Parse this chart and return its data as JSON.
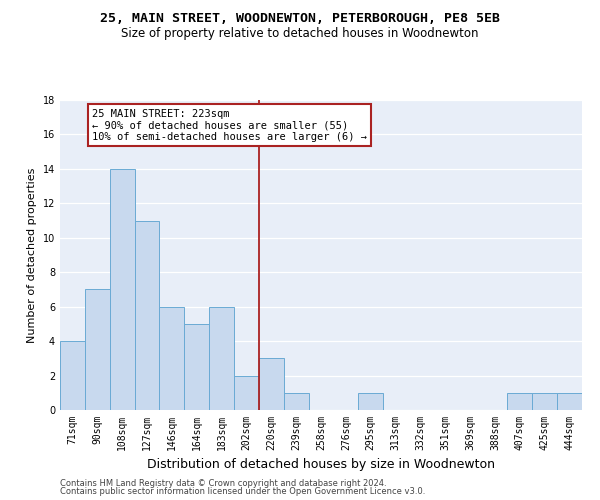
{
  "title1": "25, MAIN STREET, WOODNEWTON, PETERBOROUGH, PE8 5EB",
  "title2": "Size of property relative to detached houses in Woodnewton",
  "xlabel": "Distribution of detached houses by size in Woodnewton",
  "ylabel": "Number of detached properties",
  "categories": [
    "71sqm",
    "90sqm",
    "108sqm",
    "127sqm",
    "146sqm",
    "164sqm",
    "183sqm",
    "202sqm",
    "220sqm",
    "239sqm",
    "258sqm",
    "276sqm",
    "295sqm",
    "313sqm",
    "332sqm",
    "351sqm",
    "369sqm",
    "388sqm",
    "407sqm",
    "425sqm",
    "444sqm"
  ],
  "values": [
    4,
    7,
    14,
    11,
    6,
    5,
    6,
    2,
    3,
    1,
    0,
    0,
    1,
    0,
    0,
    0,
    0,
    0,
    1,
    1,
    1
  ],
  "bar_color": "#c8d9ee",
  "bar_edge_color": "#6aaad4",
  "vline_color": "#aa2222",
  "annotation_text": "25 MAIN STREET: 223sqm\n← 90% of detached houses are smaller (55)\n10% of semi-detached houses are larger (6) →",
  "annotation_box_color": "#aa2222",
  "ylim": [
    0,
    18
  ],
  "yticks": [
    0,
    2,
    4,
    6,
    8,
    10,
    12,
    14,
    16,
    18
  ],
  "footer1": "Contains HM Land Registry data © Crown copyright and database right 2024.",
  "footer2": "Contains public sector information licensed under the Open Government Licence v3.0.",
  "bg_color": "#e8eef8",
  "grid_color": "#ffffff",
  "title_fontsize": 9.5,
  "subtitle_fontsize": 8.5,
  "xlabel_fontsize": 9,
  "ylabel_fontsize": 8,
  "tick_fontsize": 7,
  "annotation_fontsize": 7.5,
  "footer_fontsize": 6
}
